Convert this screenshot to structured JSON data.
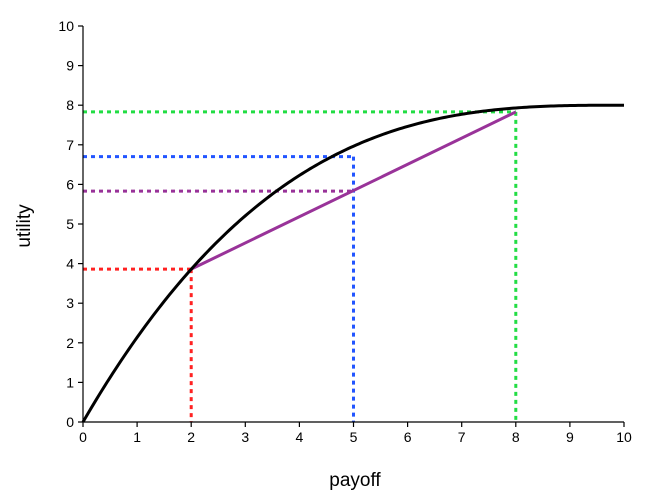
{
  "chart_data": {
    "type": "line",
    "title": "",
    "xlabel": "payoff",
    "ylabel": "utility",
    "xlim": [
      0,
      10
    ],
    "ylim": [
      0,
      10
    ],
    "x_ticks": [
      "0",
      "1",
      "2",
      "3",
      "4",
      "5",
      "6",
      "7",
      "8",
      "9",
      "10"
    ],
    "y_ticks": [
      "0",
      "1",
      "2",
      "3",
      "4",
      "5",
      "6",
      "7",
      "8",
      "9",
      "10"
    ],
    "grid": false,
    "legend": "none",
    "curve": {
      "color": "#000000",
      "points": [
        [
          0,
          0
        ],
        [
          0.5,
          1.07
        ],
        [
          1,
          2.07
        ],
        [
          1.5,
          3.0
        ],
        [
          2,
          3.86
        ],
        [
          2.5,
          4.63
        ],
        [
          3,
          5.33
        ],
        [
          3.5,
          5.95
        ],
        [
          4,
          6.49
        ],
        [
          4.5,
          6.97
        ],
        [
          5,
          6.7
        ],
        [
          5.5,
          7.05
        ],
        [
          6,
          7.3
        ],
        [
          6.5,
          7.52
        ],
        [
          7,
          7.67
        ],
        [
          7.5,
          7.76
        ],
        [
          8,
          7.83
        ],
        [
          8.5,
          7.9
        ],
        [
          9,
          7.95
        ],
        [
          9.5,
          7.98
        ],
        [
          10,
          8.0
        ]
      ]
    },
    "chord": {
      "color": "#993399",
      "from": [
        2,
        3.86
      ],
      "to": [
        8,
        7.83
      ]
    },
    "guides": [
      {
        "name": "red",
        "color": "#ff2222",
        "x": 2,
        "y": 3.86
      },
      {
        "name": "blue",
        "color": "#2255ff",
        "x": 5,
        "y": 6.7
      },
      {
        "name": "purple",
        "color": "#993399",
        "x": 5,
        "y": 5.83,
        "horizontal_only": true
      },
      {
        "name": "green",
        "color": "#22dd44",
        "x": 8,
        "y": 7.83
      }
    ]
  }
}
